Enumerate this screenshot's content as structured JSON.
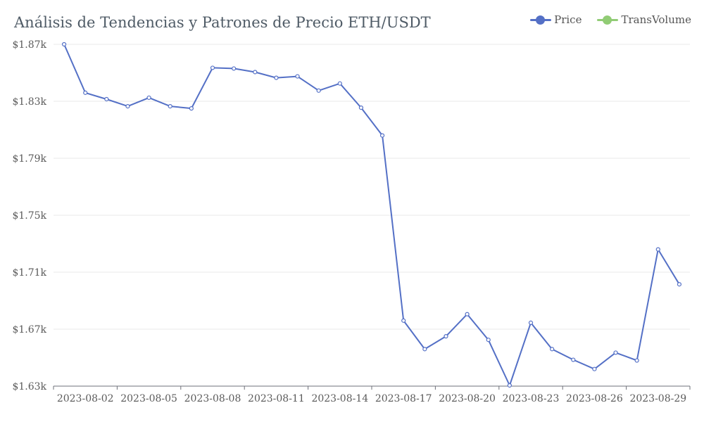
{
  "chart_data": {
    "type": "line",
    "title": "Análisis de Tendencias y Patrones de Precio ETH/USDT",
    "xlabel": "",
    "ylabel": "",
    "x": [
      "2023-08-01",
      "2023-08-02",
      "2023-08-03",
      "2023-08-04",
      "2023-08-05",
      "2023-08-06",
      "2023-08-07",
      "2023-08-08",
      "2023-08-09",
      "2023-08-10",
      "2023-08-11",
      "2023-08-12",
      "2023-08-13",
      "2023-08-14",
      "2023-08-15",
      "2023-08-16",
      "2023-08-17",
      "2023-08-18",
      "2023-08-19",
      "2023-08-20",
      "2023-08-21",
      "2023-08-22",
      "2023-08-23",
      "2023-08-24",
      "2023-08-25",
      "2023-08-26",
      "2023-08-27",
      "2023-08-28",
      "2023-08-29",
      "2023-08-30"
    ],
    "x_tick_labels": [
      "2023-08-02",
      "2023-08-05",
      "2023-08-08",
      "2023-08-11",
      "2023-08-14",
      "2023-08-17",
      "2023-08-20",
      "2023-08-23",
      "2023-08-26",
      "2023-08-29"
    ],
    "ylim": [
      1630,
      1870
    ],
    "y_ticks": [
      1630,
      1670,
      1710,
      1750,
      1790,
      1830,
      1870
    ],
    "y_tick_labels": [
      "$1.63k",
      "$1.67k",
      "$1.71k",
      "$1.75k",
      "$1.79k",
      "$1.83k",
      "$1.87k"
    ],
    "grid": true,
    "legend_position": "top-right",
    "legend": [
      "Price",
      "TransVolume"
    ],
    "colors": {
      "Price": "#5470c6",
      "TransVolume": "#91cc75"
    },
    "series": [
      {
        "name": "Price",
        "values": [
          1870,
          1836,
          1831.5,
          1826.5,
          1832.5,
          1826.5,
          1825,
          1853.5,
          1853,
          1850.5,
          1846.5,
          1847.5,
          1837.5,
          1842.5,
          1825.5,
          1806,
          1676,
          1656,
          1665,
          1680.5,
          1662.5,
          1630.5,
          1674.5,
          1656,
          1648.5,
          1642,
          1653.5,
          1648,
          1726,
          1701.5
        ]
      }
    ]
  }
}
